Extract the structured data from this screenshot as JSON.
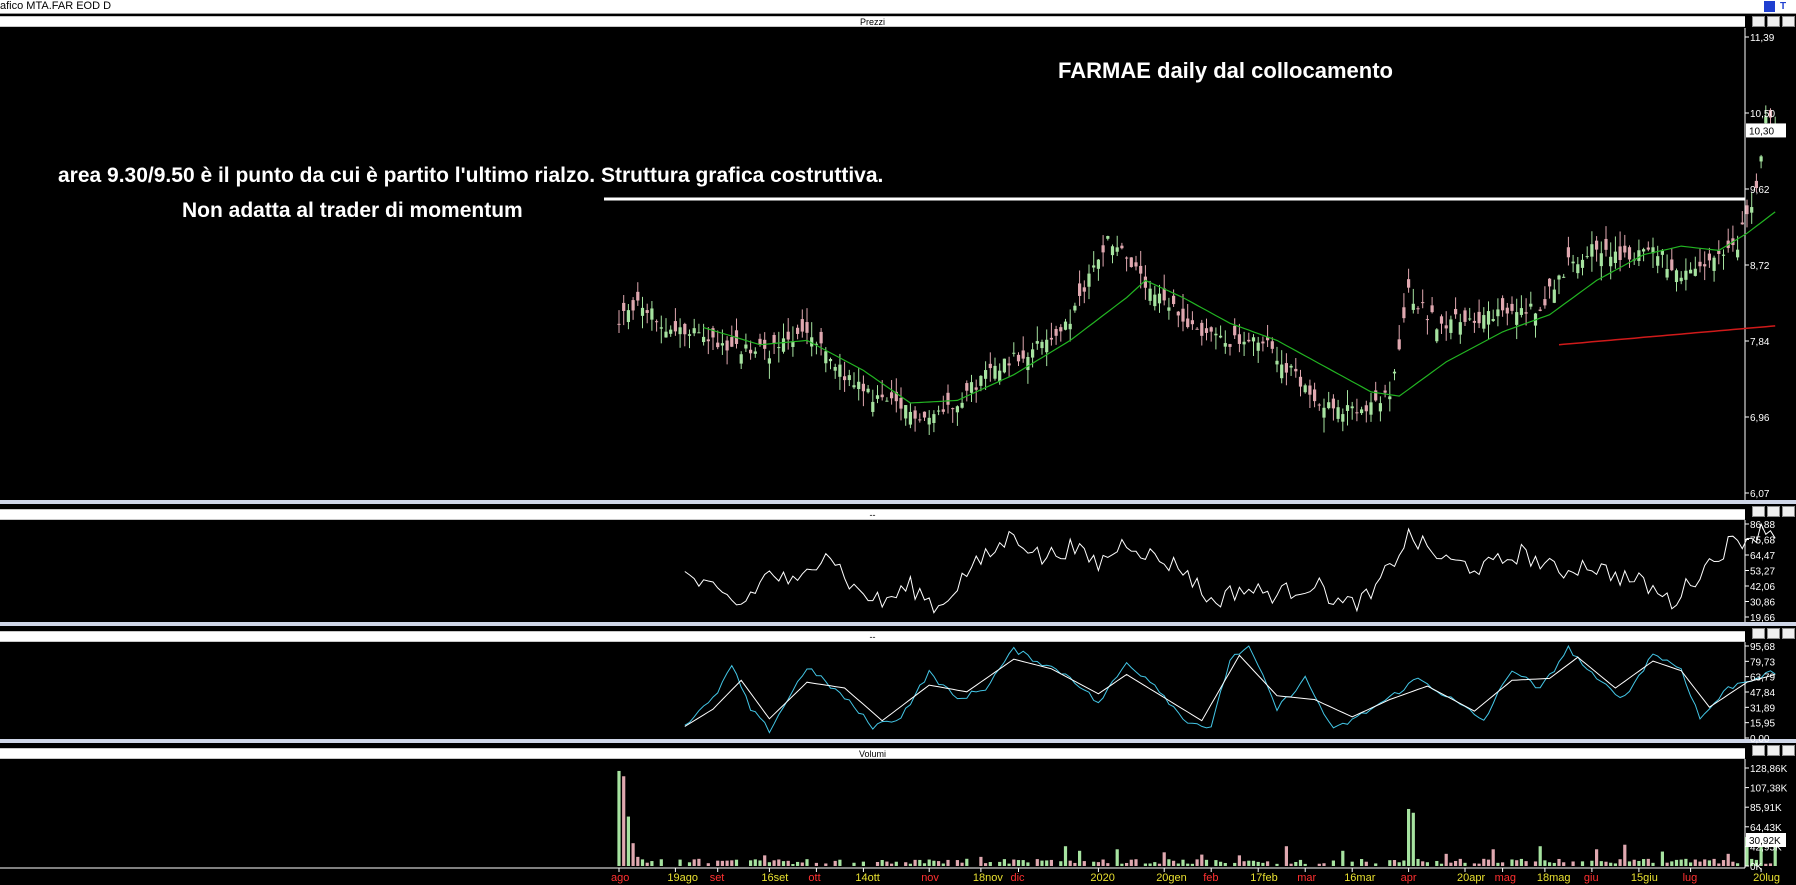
{
  "window": {
    "title": "afico MTA.FAR EOD D"
  },
  "panels": {
    "price": {
      "title": "Prezzi"
    },
    "ind1": {
      "title": "--"
    },
    "ind2": {
      "title": "--"
    },
    "volume": {
      "title": "Volumi"
    }
  },
  "annotations": {
    "title": "FARMAE daily dal collocamento",
    "line1": "area 9.30/9.50 è il punto da cui è partito l'ultimo rialzo. Struttura grafica costruttiva.",
    "line2": "Non adatta al trader di momentum"
  },
  "colors": {
    "background": "#000000",
    "bull": "#a6e3a0",
    "bear": "#e0a8b0",
    "ma_short": "#22b522",
    "ma_long": "#d01a1a",
    "osc_main": "#ffffff",
    "osc_signal": "#43c6e6",
    "axis_text": "#ffffff",
    "month_label": "#ff3030",
    "week_label": "#e8e030",
    "current_box": "#ffffff"
  },
  "x_axis": {
    "ticks": [
      {
        "label": "ago",
        "kind": "month",
        "index": 0
      },
      {
        "label": "19ago",
        "kind": "week",
        "index": 12
      },
      {
        "label": "set",
        "kind": "month",
        "index": 21
      },
      {
        "label": "16set",
        "kind": "week",
        "index": 32
      },
      {
        "label": "ott",
        "kind": "month",
        "index": 42
      },
      {
        "label": "14ott",
        "kind": "week",
        "index": 52
      },
      {
        "label": "nov",
        "kind": "month",
        "index": 66
      },
      {
        "label": "18nov",
        "kind": "week",
        "index": 77
      },
      {
        "label": "dic",
        "kind": "month",
        "index": 85
      },
      {
        "label": "2020",
        "kind": "week",
        "index": 102
      },
      {
        "label": "20gen",
        "kind": "week",
        "index": 116
      },
      {
        "label": "feb",
        "kind": "month",
        "index": 126
      },
      {
        "label": "17feb",
        "kind": "week",
        "index": 136
      },
      {
        "label": "mar",
        "kind": "month",
        "index": 146
      },
      {
        "label": "16mar",
        "kind": "week",
        "index": 156
      },
      {
        "label": "apr",
        "kind": "month",
        "index": 168
      },
      {
        "label": "20apr",
        "kind": "week",
        "index": 180
      },
      {
        "label": "mag",
        "kind": "month",
        "index": 188
      },
      {
        "label": "18mag",
        "kind": "week",
        "index": 197
      },
      {
        "label": "giu",
        "kind": "month",
        "index": 207
      },
      {
        "label": "15giu",
        "kind": "week",
        "index": 217
      },
      {
        "label": "lug",
        "kind": "month",
        "index": 228
      },
      {
        "label": "20lug",
        "kind": "week",
        "index": 243
      }
    ]
  },
  "chart_data": [
    {
      "type": "candlestick",
      "panel": "Prezzi",
      "y_ticks": [
        "11,39",
        "10,50",
        "9,62",
        "8,72",
        "7,84",
        "6,96",
        "6,07"
      ],
      "ylim": [
        6.07,
        11.39
      ],
      "current_value": "10,30",
      "resistance": 9.5,
      "anchors": [
        [
          0,
          8.05
        ],
        [
          4,
          8.35
        ],
        [
          10,
          7.95
        ],
        [
          18,
          7.92
        ],
        [
          24,
          7.75
        ],
        [
          32,
          7.72
        ],
        [
          40,
          7.95
        ],
        [
          46,
          7.55
        ],
        [
          52,
          7.25
        ],
        [
          60,
          7.05
        ],
        [
          66,
          6.95
        ],
        [
          72,
          7.15
        ],
        [
          80,
          7.55
        ],
        [
          88,
          7.75
        ],
        [
          96,
          8.05
        ],
        [
          100,
          8.6
        ],
        [
          104,
          9.05
        ],
        [
          108,
          8.85
        ],
        [
          112,
          8.45
        ],
        [
          118,
          8.2
        ],
        [
          124,
          7.95
        ],
        [
          130,
          7.85
        ],
        [
          138,
          7.8
        ],
        [
          146,
          7.3
        ],
        [
          152,
          7.05
        ],
        [
          158,
          7.0
        ],
        [
          164,
          7.2
        ],
        [
          168,
          8.4
        ],
        [
          174,
          8.05
        ],
        [
          180,
          8.1
        ],
        [
          188,
          8.15
        ],
        [
          196,
          8.25
        ],
        [
          202,
          8.75
        ],
        [
          208,
          8.95
        ],
        [
          214,
          8.8
        ],
        [
          220,
          8.95
        ],
        [
          226,
          8.55
        ],
        [
          232,
          8.75
        ],
        [
          238,
          8.95
        ],
        [
          242,
          9.65
        ],
        [
          244,
          10.5
        ],
        [
          246,
          10.3
        ]
      ],
      "ma_short": [
        [
          18,
          8.0
        ],
        [
          30,
          7.8
        ],
        [
          40,
          7.85
        ],
        [
          52,
          7.5
        ],
        [
          62,
          7.12
        ],
        [
          72,
          7.15
        ],
        [
          84,
          7.45
        ],
        [
          96,
          7.85
        ],
        [
          108,
          8.35
        ],
        [
          112,
          8.55
        ],
        [
          120,
          8.35
        ],
        [
          130,
          8.05
        ],
        [
          140,
          7.85
        ],
        [
          150,
          7.55
        ],
        [
          160,
          7.25
        ],
        [
          166,
          7.2
        ],
        [
          176,
          7.6
        ],
        [
          188,
          7.95
        ],
        [
          198,
          8.15
        ],
        [
          208,
          8.55
        ],
        [
          218,
          8.85
        ],
        [
          226,
          8.95
        ],
        [
          234,
          8.9
        ],
        [
          240,
          9.1
        ],
        [
          246,
          9.35
        ]
      ],
      "ma_long": [
        [
          200,
          7.8
        ],
        [
          246,
          8.02
        ]
      ]
    },
    {
      "type": "line",
      "panel": "--",
      "y_ticks": [
        "86,88",
        "75,68",
        "64,47",
        "53,27",
        "42,06",
        "30,86",
        "19,66"
      ],
      "ylim": [
        19.66,
        86.88
      ],
      "series": [
        {
          "anchors": [
            [
              14,
              50
            ],
            [
              20,
              38
            ],
            [
              26,
              28
            ],
            [
              32,
              52
            ],
            [
              38,
              42
            ],
            [
              44,
              70
            ],
            [
              50,
              40
            ],
            [
              56,
              30
            ],
            [
              62,
              42
            ],
            [
              68,
              26
            ],
            [
              74,
              52
            ],
            [
              80,
              68
            ],
            [
              84,
              80
            ],
            [
              90,
              62
            ],
            [
              96,
              70
            ],
            [
              102,
              58
            ],
            [
              108,
              75
            ],
            [
              114,
              62
            ],
            [
              120,
              55
            ],
            [
              126,
              30
            ],
            [
              132,
              40
            ],
            [
              140,
              36
            ],
            [
              148,
              44
            ],
            [
              154,
              28
            ],
            [
              160,
              34
            ],
            [
              168,
              78
            ],
            [
              176,
              60
            ],
            [
              184,
              55
            ],
            [
              192,
              66
            ],
            [
              200,
              52
            ],
            [
              206,
              58
            ],
            [
              212,
              50
            ],
            [
              218,
              44
            ],
            [
              224,
              30
            ],
            [
              230,
              52
            ],
            [
              236,
              72
            ],
            [
              242,
              80
            ],
            [
              244,
              86
            ],
            [
              246,
              78
            ]
          ]
        }
      ]
    },
    {
      "type": "line",
      "panel": "--",
      "y_ticks": [
        "95,68",
        "79,73",
        "63,79",
        "47,84",
        "31,89",
        "15,95",
        "0,00"
      ],
      "ylim": [
        0,
        95.68
      ],
      "series": [
        {
          "name": "",
          "anchors": [
            [
              14,
              14
            ],
            [
              20,
              40
            ],
            [
              24,
              75
            ],
            [
              28,
              30
            ],
            [
              32,
              8
            ],
            [
              40,
              74
            ],
            [
              48,
              42
            ],
            [
              54,
              12
            ],
            [
              60,
              22
            ],
            [
              66,
              68
            ],
            [
              72,
              40
            ],
            [
              78,
              52
            ],
            [
              84,
              92
            ],
            [
              90,
              78
            ],
            [
              96,
              64
            ],
            [
              102,
              36
            ],
            [
              108,
              78
            ],
            [
              114,
              56
            ],
            [
              120,
              20
            ],
            [
              126,
              10
            ],
            [
              130,
              82
            ],
            [
              134,
              96
            ],
            [
              140,
              30
            ],
            [
              146,
              62
            ],
            [
              152,
              8
            ],
            [
              158,
              24
            ],
            [
              164,
              42
            ],
            [
              170,
              62
            ],
            [
              176,
              44
            ],
            [
              184,
              18
            ],
            [
              190,
              72
            ],
            [
              196,
              50
            ],
            [
              202,
              94
            ],
            [
              208,
              60
            ],
            [
              214,
              42
            ],
            [
              220,
              88
            ],
            [
              226,
              72
            ],
            [
              230,
              20
            ],
            [
              236,
              52
            ],
            [
              240,
              60
            ],
            [
              244,
              66
            ],
            [
              246,
              68
            ]
          ]
        },
        {
          "name": "",
          "anchors": [
            [
              14,
              12
            ],
            [
              20,
              30
            ],
            [
              26,
              60
            ],
            [
              32,
              20
            ],
            [
              40,
              58
            ],
            [
              48,
              52
            ],
            [
              56,
              18
            ],
            [
              66,
              55
            ],
            [
              74,
              48
            ],
            [
              84,
              82
            ],
            [
              92,
              72
            ],
            [
              102,
              46
            ],
            [
              108,
              66
            ],
            [
              116,
              42
            ],
            [
              124,
              18
            ],
            [
              132,
              86
            ],
            [
              140,
              44
            ],
            [
              148,
              40
            ],
            [
              156,
              22
            ],
            [
              164,
              40
            ],
            [
              172,
              54
            ],
            [
              182,
              28
            ],
            [
              190,
              60
            ],
            [
              198,
              62
            ],
            [
              204,
              84
            ],
            [
              212,
              52
            ],
            [
              220,
              80
            ],
            [
              226,
              70
            ],
            [
              232,
              32
            ],
            [
              240,
              58
            ],
            [
              246,
              66
            ]
          ]
        }
      ]
    },
    {
      "type": "bar",
      "panel": "Volumi",
      "y_ticks": [
        "128,86K",
        "107,38K",
        "85,91K",
        "64,43K",
        "42,95K",
        "0K"
      ],
      "ylim": [
        0,
        128860
      ],
      "current_value": "30,92K",
      "spikes": [
        [
          0,
          125000
        ],
        [
          1,
          118000
        ],
        [
          2,
          65000
        ],
        [
          3,
          30000
        ],
        [
          4,
          12000
        ],
        [
          31,
          14000
        ],
        [
          40,
          9000
        ],
        [
          77,
          12000
        ],
        [
          95,
          26000
        ],
        [
          98,
          20000
        ],
        [
          106,
          22000
        ],
        [
          116,
          18000
        ],
        [
          124,
          15000
        ],
        [
          132,
          14000
        ],
        [
          142,
          26000
        ],
        [
          154,
          20000
        ],
        [
          168,
          75000
        ],
        [
          169,
          70000
        ],
        [
          176,
          16000
        ],
        [
          186,
          22000
        ],
        [
          196,
          26000
        ],
        [
          208,
          22000
        ],
        [
          214,
          28000
        ],
        [
          222,
          19000
        ],
        [
          236,
          16000
        ],
        [
          240,
          38000
        ],
        [
          243,
          34000
        ],
        [
          246,
          30920
        ]
      ]
    }
  ]
}
